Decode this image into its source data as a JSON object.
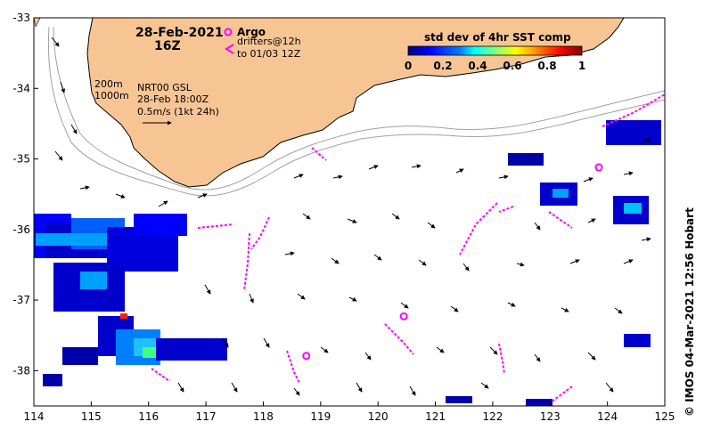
{
  "header": {
    "date": "28-Feb-2021",
    "time": "16Z"
  },
  "legend": {
    "argo_label": "Argo",
    "drifters_line1": "drifters@12h",
    "drifters_line2": "to 01/03 12Z",
    "isobath_200": "200m",
    "isobath_1000": "1000m",
    "product": "NRT00 GSL",
    "product_time": "28-Feb 18:00Z",
    "scale_label": "0.5m/s (1kt 24h)"
  },
  "colorbar": {
    "title": "std dev of 4hr SST comp",
    "ticks": [
      "0",
      "0.2",
      "0.4",
      "0.6",
      "0.8",
      "1"
    ],
    "range": [
      0,
      1
    ],
    "colors": [
      "#00007f",
      "#0000ff",
      "#0080ff",
      "#00ffff",
      "#80ff80",
      "#ffff00",
      "#ff8000",
      "#ff0000",
      "#7f0000"
    ]
  },
  "axes": {
    "x_ticks": [
      "114",
      "115",
      "116",
      "117",
      "118",
      "119",
      "120",
      "121",
      "122",
      "123",
      "124",
      "125"
    ],
    "y_ticks": [
      "-33",
      "-34",
      "-35",
      "-36",
      "-37",
      "-38"
    ],
    "lon_range": [
      114,
      125
    ],
    "lat_range": [
      -38.5,
      -33
    ]
  },
  "credit": "© IMOS 04-Mar-2021 12:56 Hobart",
  "colors": {
    "land": "#f7c594",
    "argo": "#ff00ff",
    "drifter": "#ff00ff",
    "isobath": "#a0a0a0"
  },
  "argo_floats": [
    {
      "lon": 123.85,
      "lat": -35.12
    },
    {
      "lon": 120.45,
      "lat": -37.23
    },
    {
      "lon": 118.75,
      "lat": -37.79
    }
  ]
}
